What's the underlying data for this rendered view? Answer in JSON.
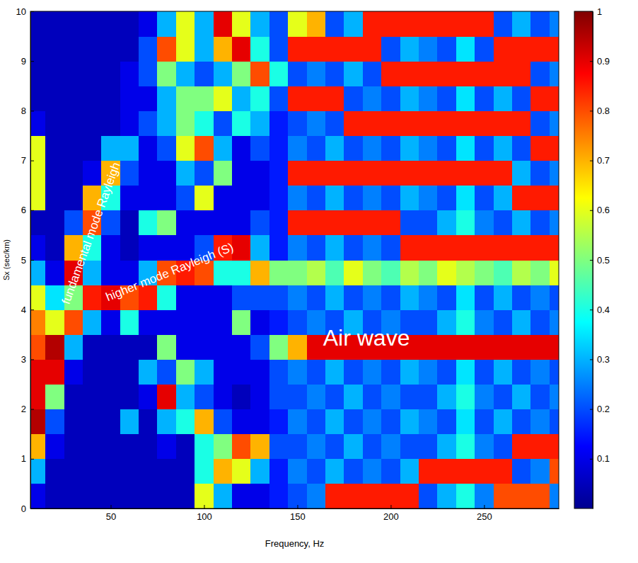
{
  "chart_data": {
    "type": "heatmap",
    "x_label": "Frequency, Hz",
    "y_label": "Sx (sec/km)",
    "annotations": [
      "fundamental mode Rayleigh",
      "higher mode Rayleigh (S)",
      "Air wave"
    ],
    "xlim": [
      7,
      290
    ],
    "ylim": [
      0,
      10
    ],
    "xticks": [
      50,
      100,
      150,
      200,
      250
    ],
    "yticks": [
      0,
      1,
      2,
      3,
      4,
      5,
      6,
      7,
      8,
      9,
      10
    ],
    "colorbar": {
      "range": [
        0,
        1
      ],
      "ticks": [
        0.1,
        0.2,
        0.3,
        0.4,
        0.5,
        0.6,
        0.7,
        0.8,
        0.9,
        1
      ]
    },
    "x": [
      10,
      20,
      30,
      40,
      50,
      60,
      70,
      80,
      90,
      100,
      110,
      120,
      130,
      140,
      150,
      160,
      170,
      180,
      190,
      200,
      210,
      220,
      230,
      240,
      250,
      260,
      270,
      280,
      290
    ],
    "y": [
      0.25,
      0.75,
      1.25,
      1.75,
      2.25,
      2.75,
      3.25,
      3.75,
      4.25,
      4.75,
      5.25,
      5.75,
      6.25,
      6.75,
      7.25,
      7.75,
      8.25,
      8.75,
      9.25,
      9.75
    ],
    "z": [
      [
        0.1,
        0.05,
        0.05,
        0.05,
        0.05,
        0.05,
        0.05,
        0.05,
        0.05,
        0.6,
        0.3,
        0.1,
        0.1,
        0.15,
        0.2,
        0.25,
        0.85,
        0.85,
        0.85,
        0.85,
        0.85,
        0.2,
        0.3,
        0.4,
        0.25,
        0.8,
        0.8,
        0.8,
        0.25
      ],
      [
        0.3,
        0.05,
        0.05,
        0.05,
        0.05,
        0.05,
        0.05,
        0.05,
        0.05,
        0.4,
        0.7,
        0.6,
        0.3,
        0.15,
        0.25,
        0.2,
        0.3,
        0.2,
        0.25,
        0.2,
        0.3,
        0.85,
        0.85,
        0.85,
        0.85,
        0.85,
        0.2,
        0.25,
        0.8
      ],
      [
        0.7,
        0.1,
        0.05,
        0.05,
        0.05,
        0.05,
        0.05,
        0.1,
        0.05,
        0.4,
        0.5,
        0.8,
        0.7,
        0.2,
        0.2,
        0.25,
        0.2,
        0.3,
        0.2,
        0.25,
        0.2,
        0.2,
        0.3,
        0.4,
        0.25,
        0.2,
        0.85,
        0.85,
        0.85
      ],
      [
        0.95,
        0.2,
        0.05,
        0.05,
        0.05,
        0.3,
        0.05,
        0.3,
        0.4,
        0.7,
        0.2,
        0.1,
        0.1,
        0.15,
        0.25,
        0.2,
        0.3,
        0.2,
        0.25,
        0.2,
        0.3,
        0.25,
        0.2,
        0.35,
        0.2,
        0.3,
        0.2,
        0.25,
        0.2
      ],
      [
        0.9,
        0.5,
        0.05,
        0.05,
        0.05,
        0.05,
        0.1,
        0.9,
        0.3,
        0.2,
        0.1,
        0.05,
        0.1,
        0.2,
        0.2,
        0.25,
        0.2,
        0.3,
        0.2,
        0.25,
        0.2,
        0.2,
        0.3,
        0.4,
        0.25,
        0.2,
        0.3,
        0.2,
        0.25
      ],
      [
        0.9,
        0.9,
        0.1,
        0.05,
        0.05,
        0.05,
        0.3,
        0.2,
        0.5,
        0.3,
        0.1,
        0.1,
        0.1,
        0.2,
        0.25,
        0.2,
        0.3,
        0.2,
        0.25,
        0.2,
        0.3,
        0.25,
        0.2,
        0.35,
        0.2,
        0.3,
        0.2,
        0.25,
        0.2
      ],
      [
        0.8,
        0.95,
        0.3,
        0.05,
        0.05,
        0.05,
        0.05,
        0.5,
        0.1,
        0.1,
        0.1,
        0.1,
        0.2,
        0.5,
        0.7,
        0.9,
        0.9,
        0.9,
        0.9,
        0.9,
        0.9,
        0.9,
        0.9,
        0.9,
        0.9,
        0.9,
        0.9,
        0.9,
        0.9
      ],
      [
        0.75,
        0.6,
        0.8,
        0.3,
        0.1,
        0.4,
        0.1,
        0.1,
        0.1,
        0.1,
        0.1,
        0.5,
        0.1,
        0.15,
        0.2,
        0.25,
        0.2,
        0.3,
        0.2,
        0.25,
        0.2,
        0.2,
        0.3,
        0.4,
        0.25,
        0.2,
        0.3,
        0.2,
        0.25
      ],
      [
        0.6,
        0.35,
        0.5,
        0.85,
        0.9,
        0.8,
        0.85,
        0.4,
        0.1,
        0.1,
        0.1,
        0.2,
        0.2,
        0.2,
        0.25,
        0.2,
        0.3,
        0.2,
        0.25,
        0.2,
        0.3,
        0.25,
        0.2,
        0.35,
        0.2,
        0.3,
        0.2,
        0.25,
        0.2
      ],
      [
        0.3,
        0.1,
        0.9,
        0.3,
        0.1,
        0.1,
        0.3,
        0.8,
        0.85,
        0.8,
        0.4,
        0.4,
        0.7,
        0.5,
        0.5,
        0.55,
        0.45,
        0.6,
        0.5,
        0.45,
        0.55,
        0.5,
        0.6,
        0.55,
        0.5,
        0.45,
        0.55,
        0.5,
        0.6
      ],
      [
        0.1,
        0.05,
        0.7,
        0.4,
        0.1,
        0.05,
        0.1,
        0.1,
        0.1,
        0.2,
        0.85,
        0.9,
        0.3,
        0.15,
        0.25,
        0.2,
        0.3,
        0.2,
        0.25,
        0.2,
        0.85,
        0.85,
        0.85,
        0.85,
        0.85,
        0.85,
        0.85,
        0.85,
        0.85
      ],
      [
        0.05,
        0.05,
        0.2,
        0.8,
        0.2,
        0.05,
        0.4,
        0.5,
        0.1,
        0.1,
        0.1,
        0.1,
        0.2,
        0.15,
        0.85,
        0.85,
        0.85,
        0.85,
        0.85,
        0.85,
        0.2,
        0.2,
        0.3,
        0.4,
        0.25,
        0.2,
        0.3,
        0.2,
        0.25
      ],
      [
        0.6,
        0.05,
        0.05,
        0.7,
        0.4,
        0.1,
        0.1,
        0.1,
        0.2,
        0.6,
        0.1,
        0.1,
        0.1,
        0.15,
        0.25,
        0.2,
        0.3,
        0.2,
        0.25,
        0.2,
        0.3,
        0.25,
        0.2,
        0.35,
        0.2,
        0.3,
        0.85,
        0.85,
        0.85
      ],
      [
        0.6,
        0.05,
        0.05,
        0.1,
        0.7,
        0.2,
        0.1,
        0.1,
        0.3,
        0.2,
        0.5,
        0.1,
        0.1,
        0.15,
        0.85,
        0.85,
        0.85,
        0.85,
        0.85,
        0.85,
        0.85,
        0.85,
        0.85,
        0.85,
        0.85,
        0.85,
        0.3,
        0.2,
        0.25
      ],
      [
        0.6,
        0.05,
        0.05,
        0.05,
        0.3,
        0.3,
        0.1,
        0.2,
        0.6,
        0.8,
        0.3,
        0.1,
        0.2,
        0.15,
        0.25,
        0.2,
        0.3,
        0.2,
        0.25,
        0.2,
        0.3,
        0.25,
        0.2,
        0.35,
        0.2,
        0.3,
        0.2,
        0.85,
        0.85
      ],
      [
        0.1,
        0.05,
        0.05,
        0.05,
        0.05,
        0.1,
        0.2,
        0.3,
        0.5,
        0.4,
        0.2,
        0.4,
        0.3,
        0.15,
        0.2,
        0.25,
        0.2,
        0.85,
        0.85,
        0.85,
        0.85,
        0.85,
        0.85,
        0.85,
        0.85,
        0.85,
        0.85,
        0.2,
        0.25
      ],
      [
        0.05,
        0.05,
        0.05,
        0.05,
        0.05,
        0.1,
        0.1,
        0.3,
        0.5,
        0.5,
        0.6,
        0.3,
        0.4,
        0.2,
        0.85,
        0.85,
        0.85,
        0.2,
        0.25,
        0.2,
        0.3,
        0.25,
        0.2,
        0.35,
        0.2,
        0.3,
        0.2,
        0.85,
        0.85
      ],
      [
        0.05,
        0.05,
        0.05,
        0.05,
        0.05,
        0.1,
        0.2,
        0.5,
        0.3,
        0.2,
        0.3,
        0.5,
        0.8,
        0.4,
        0.2,
        0.25,
        0.2,
        0.3,
        0.2,
        0.85,
        0.85,
        0.85,
        0.85,
        0.85,
        0.85,
        0.85,
        0.85,
        0.2,
        0.25
      ],
      [
        0.05,
        0.05,
        0.05,
        0.05,
        0.05,
        0.05,
        0.2,
        0.8,
        0.6,
        0.3,
        0.7,
        0.9,
        0.4,
        0.2,
        0.85,
        0.85,
        0.85,
        0.85,
        0.85,
        0.2,
        0.3,
        0.25,
        0.2,
        0.35,
        0.2,
        0.85,
        0.85,
        0.85,
        0.85
      ],
      [
        0.05,
        0.05,
        0.05,
        0.05,
        0.05,
        0.05,
        0.1,
        0.3,
        0.6,
        0.3,
        0.9,
        0.6,
        0.3,
        0.2,
        0.6,
        0.7,
        0.2,
        0.3,
        0.85,
        0.85,
        0.85,
        0.85,
        0.85,
        0.85,
        0.85,
        0.2,
        0.3,
        0.2,
        0.25
      ]
    ]
  }
}
